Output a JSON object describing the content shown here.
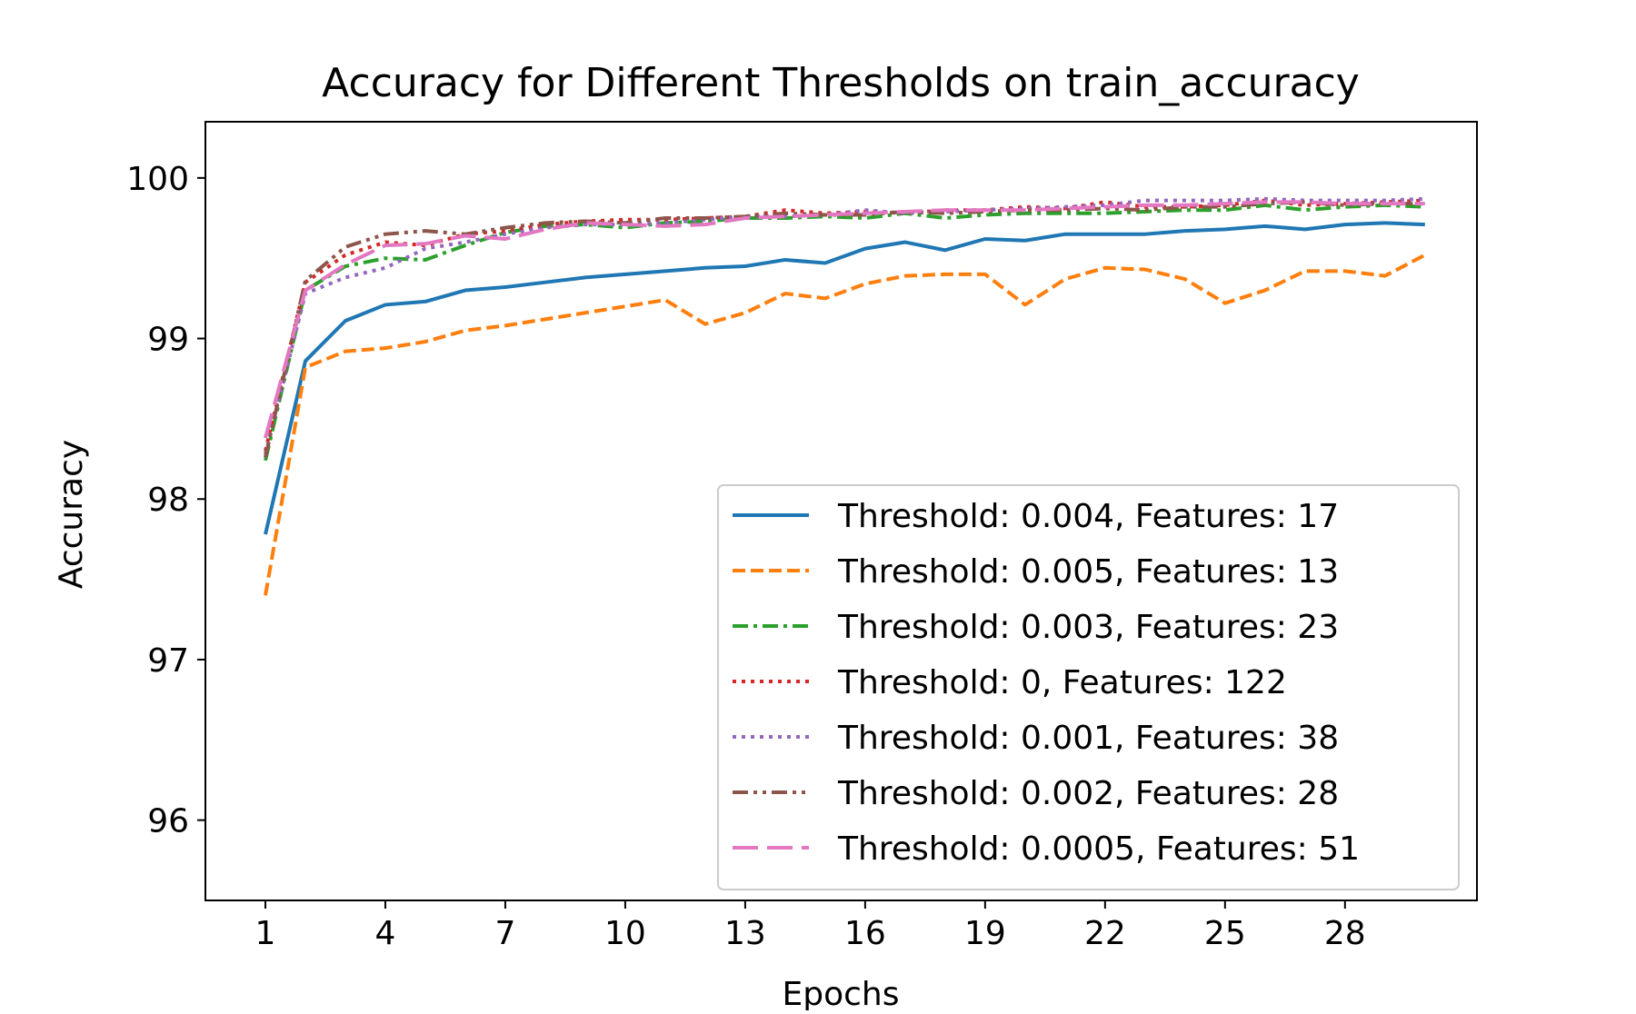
{
  "chart_data": {
    "type": "line",
    "title": "Accuracy for Different Thresholds on train_accuracy",
    "xlabel": "Epochs",
    "ylabel": "Accuracy",
    "xlim": [
      -0.5,
      31.3
    ],
    "ylim": [
      95.5,
      100.35
    ],
    "xticks": [
      1,
      4,
      7,
      10,
      13,
      16,
      19,
      22,
      25,
      28
    ],
    "yticks": [
      96,
      97,
      98,
      99,
      100
    ],
    "grid": false,
    "legend_position": "bottom-right",
    "x": [
      1,
      2,
      3,
      4,
      5,
      6,
      7,
      8,
      9,
      10,
      11,
      12,
      13,
      14,
      15,
      16,
      17,
      18,
      19,
      20,
      21,
      22,
      23,
      24,
      25,
      26,
      27,
      28,
      29,
      30
    ],
    "series": [
      {
        "name": "Threshold: 0.004, Features: 17",
        "color": "#1f77b4",
        "dash": "solid",
        "values": [
          97.78,
          98.86,
          99.11,
          99.21,
          99.23,
          99.3,
          99.32,
          99.35,
          99.38,
          99.4,
          99.42,
          99.44,
          99.45,
          99.49,
          99.47,
          99.56,
          99.6,
          99.55,
          99.62,
          99.61,
          99.65,
          99.65,
          99.65,
          99.67,
          99.68,
          99.7,
          99.68,
          99.71,
          99.72,
          99.71
        ]
      },
      {
        "name": "Threshold: 0.005, Features: 13",
        "color": "#ff7f0e",
        "dash": "dashed",
        "values": [
          97.4,
          98.82,
          98.92,
          98.94,
          98.98,
          99.05,
          99.08,
          99.12,
          99.16,
          99.2,
          99.24,
          99.09,
          99.16,
          99.28,
          99.25,
          99.34,
          99.39,
          99.4,
          99.4,
          99.21,
          99.37,
          99.44,
          99.43,
          99.37,
          99.22,
          99.3,
          99.42,
          99.42,
          99.39,
          99.52
        ]
      },
      {
        "name": "Threshold: 0.003, Features: 23",
        "color": "#2ca02c",
        "dash": "dashdot",
        "values": [
          98.24,
          99.3,
          99.45,
          99.5,
          99.49,
          99.58,
          99.66,
          99.7,
          99.71,
          99.69,
          99.72,
          99.73,
          99.75,
          99.75,
          99.76,
          99.75,
          99.78,
          99.75,
          99.77,
          99.78,
          99.78,
          99.78,
          99.79,
          99.8,
          99.8,
          99.83,
          99.8,
          99.82,
          99.83,
          99.82
        ]
      },
      {
        "name": "Threshold: 0, Features: 122",
        "color": "#d62728",
        "dash": "dotted",
        "values": [
          98.3,
          99.35,
          99.52,
          99.6,
          99.58,
          99.65,
          99.67,
          99.71,
          99.73,
          99.74,
          99.74,
          99.75,
          99.76,
          99.8,
          99.78,
          99.79,
          99.78,
          99.8,
          99.8,
          99.82,
          99.81,
          99.85,
          99.82,
          99.82,
          99.83,
          99.86,
          99.83,
          99.84,
          99.85,
          99.86
        ]
      },
      {
        "name": "Threshold: 0.001, Features: 38",
        "color": "#9467bd",
        "dash": "dotted",
        "values": [
          98.28,
          99.28,
          99.38,
          99.44,
          99.56,
          99.6,
          99.65,
          99.69,
          99.71,
          99.71,
          99.72,
          99.74,
          99.76,
          99.76,
          99.77,
          99.8,
          99.78,
          99.79,
          99.8,
          99.81,
          99.82,
          99.83,
          99.86,
          99.86,
          99.86,
          99.87,
          99.86,
          99.86,
          99.86,
          99.87
        ]
      },
      {
        "name": "Threshold: 0.002, Features: 28",
        "color": "#8c564b",
        "dash": "dashdotdot",
        "values": [
          98.26,
          99.36,
          99.57,
          99.65,
          99.67,
          99.65,
          99.69,
          99.72,
          99.73,
          99.72,
          99.75,
          99.75,
          99.76,
          99.78,
          99.77,
          99.77,
          99.79,
          99.78,
          99.79,
          99.8,
          99.8,
          99.81,
          99.8,
          99.82,
          99.82,
          99.84,
          99.85,
          99.83,
          99.84,
          99.84
        ]
      },
      {
        "name": "Threshold: 0.0005, Features: 51",
        "color": "#e377c2",
        "dash": "longdash",
        "values": [
          98.38,
          99.3,
          99.46,
          99.58,
          99.59,
          99.64,
          99.62,
          99.68,
          99.72,
          99.71,
          99.7,
          99.71,
          99.75,
          99.76,
          99.77,
          99.78,
          99.79,
          99.8,
          99.8,
          99.8,
          99.81,
          99.82,
          99.83,
          99.83,
          99.84,
          99.85,
          99.85,
          99.84,
          99.84,
          99.84
        ]
      }
    ]
  }
}
